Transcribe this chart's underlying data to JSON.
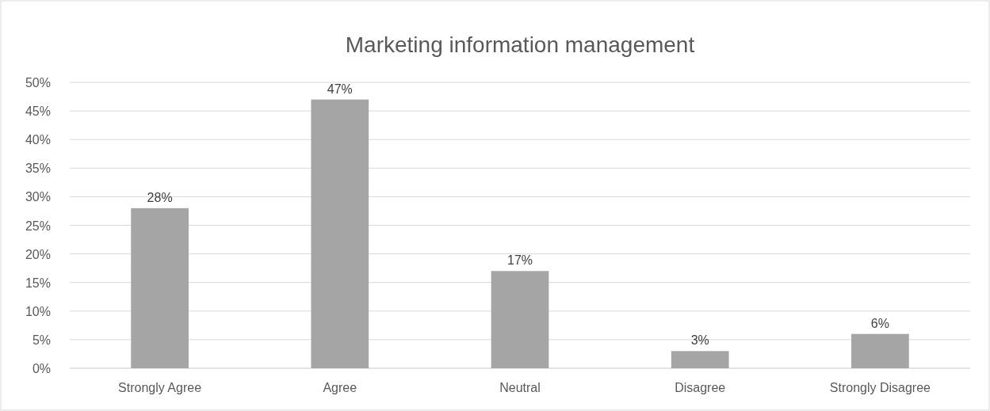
{
  "chart_data": {
    "type": "bar",
    "title": "Marketing information management",
    "categories": [
      "Strongly Agree",
      "Agree",
      "Neutral",
      "Disagree",
      "Strongly Disagree"
    ],
    "values": [
      28,
      47,
      17,
      3,
      6
    ],
    "value_labels": [
      "28%",
      "47%",
      "17%",
      "3%",
      "6%"
    ],
    "color": "#a5a5a5",
    "ylim": [
      0,
      50
    ],
    "yticks": [
      {
        "value": 0,
        "label": "0%"
      },
      {
        "value": 5,
        "label": "5%"
      },
      {
        "value": 10,
        "label": "10%"
      },
      {
        "value": 15,
        "label": "15%"
      },
      {
        "value": 20,
        "label": "20%"
      },
      {
        "value": 25,
        "label": "25%"
      },
      {
        "value": 30,
        "label": "30%"
      },
      {
        "value": 35,
        "label": "35%"
      },
      {
        "value": 40,
        "label": "40%"
      },
      {
        "value": 45,
        "label": "45%"
      },
      {
        "value": 50,
        "label": "50%"
      }
    ],
    "grid": "y"
  }
}
